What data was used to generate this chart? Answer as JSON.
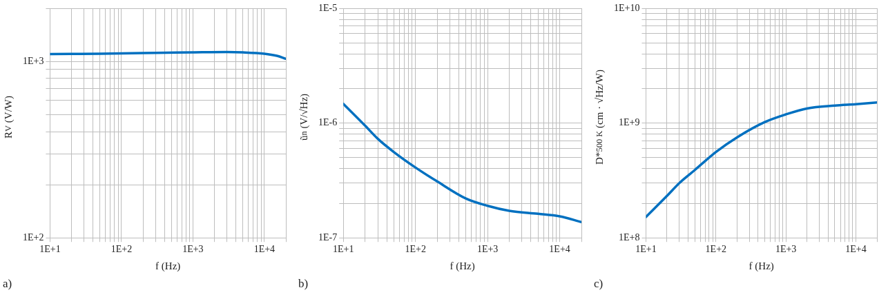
{
  "chart_data": [
    {
      "type": "line",
      "xlabel": "f (Hz)",
      "ylabel": "R$_{V}$ (V/W)",
      "annotations": [
        "a)"
      ],
      "log": "xy",
      "grid": true,
      "legend": false,
      "marker": "none",
      "line_style": "solid",
      "x": [
        10,
        20,
        50,
        100,
        300,
        1000,
        3000,
        5000,
        10000,
        15000,
        20000
      ],
      "series": [
        {
          "color": "#0070c0",
          "values": [
            1100,
            1102,
            1105,
            1110,
            1118,
            1125,
            1130,
            1125,
            1105,
            1075,
            1035
          ]
        }
      ],
      "xlim": [
        10,
        20000
      ],
      "ylim": [
        100,
        2000
      ],
      "xticks": [
        {
          "value": 10,
          "label": "1E+1"
        },
        {
          "value": 20,
          "label": null
        },
        {
          "value": 30,
          "label": null
        },
        {
          "value": 40,
          "label": null
        },
        {
          "value": 50,
          "label": null
        },
        {
          "value": 60,
          "label": null
        },
        {
          "value": 70,
          "label": null
        },
        {
          "value": 80,
          "label": null
        },
        {
          "value": 90,
          "label": null
        },
        {
          "value": 100,
          "label": "1E+2"
        },
        {
          "value": 200,
          "label": null
        },
        {
          "value": 300,
          "label": null
        },
        {
          "value": 400,
          "label": null
        },
        {
          "value": 500,
          "label": null
        },
        {
          "value": 600,
          "label": null
        },
        {
          "value": 700,
          "label": null
        },
        {
          "value": 800,
          "label": null
        },
        {
          "value": 900,
          "label": null
        },
        {
          "value": 1000,
          "label": "1E+3"
        },
        {
          "value": 2000,
          "label": null
        },
        {
          "value": 3000,
          "label": null
        },
        {
          "value": 4000,
          "label": null
        },
        {
          "value": 5000,
          "label": null
        },
        {
          "value": 6000,
          "label": null
        },
        {
          "value": 7000,
          "label": null
        },
        {
          "value": 8000,
          "label": null
        },
        {
          "value": 9000,
          "label": null
        },
        {
          "value": 10000,
          "label": "1E+4"
        },
        {
          "value": 20000,
          "label": null
        }
      ],
      "yticks": [
        {
          "value": 100,
          "label": "1E+2"
        },
        {
          "value": 200,
          "label": null
        },
        {
          "value": 300,
          "label": null
        },
        {
          "value": 400,
          "label": null
        },
        {
          "value": 500,
          "label": null
        },
        {
          "value": 600,
          "label": null
        },
        {
          "value": 700,
          "label": null
        },
        {
          "value": 800,
          "label": null
        },
        {
          "value": 900,
          "label": null
        },
        {
          "value": 1000,
          "label": "1E+3"
        },
        {
          "value": 2000,
          "label": null
        }
      ]
    },
    {
      "type": "line",
      "xlabel": "f (Hz)",
      "ylabel": "ũ$_{n}$ (V/√Hz)",
      "annotations": [
        "b)"
      ],
      "log": "xy",
      "grid": true,
      "legend": false,
      "marker": "none",
      "line_style": "solid",
      "x": [
        10,
        20,
        30,
        50,
        100,
        200,
        500,
        1000,
        2000,
        5000,
        10000,
        20000
      ],
      "series": [
        {
          "color": "#0070c0",
          "values": [
            1.47e-06,
            9.5e-07,
            7.3e-07,
            5.6e-07,
            4.1e-07,
            3.1e-07,
            2.2e-07,
            1.9e-07,
            1.72e-07,
            1.62e-07,
            1.54e-07,
            1.37e-07
          ]
        }
      ],
      "xlim": [
        10,
        20000
      ],
      "ylim": [
        1e-07,
        1e-05
      ],
      "xticks": [
        {
          "value": 10,
          "label": "1E+1"
        },
        {
          "value": 20,
          "label": null
        },
        {
          "value": 30,
          "label": null
        },
        {
          "value": 40,
          "label": null
        },
        {
          "value": 50,
          "label": null
        },
        {
          "value": 60,
          "label": null
        },
        {
          "value": 70,
          "label": null
        },
        {
          "value": 80,
          "label": null
        },
        {
          "value": 90,
          "label": null
        },
        {
          "value": 100,
          "label": "1E+2"
        },
        {
          "value": 200,
          "label": null
        },
        {
          "value": 300,
          "label": null
        },
        {
          "value": 400,
          "label": null
        },
        {
          "value": 500,
          "label": null
        },
        {
          "value": 600,
          "label": null
        },
        {
          "value": 700,
          "label": null
        },
        {
          "value": 800,
          "label": null
        },
        {
          "value": 900,
          "label": null
        },
        {
          "value": 1000,
          "label": "1E+3"
        },
        {
          "value": 2000,
          "label": null
        },
        {
          "value": 3000,
          "label": null
        },
        {
          "value": 4000,
          "label": null
        },
        {
          "value": 5000,
          "label": null
        },
        {
          "value": 6000,
          "label": null
        },
        {
          "value": 7000,
          "label": null
        },
        {
          "value": 8000,
          "label": null
        },
        {
          "value": 9000,
          "label": null
        },
        {
          "value": 10000,
          "label": "1E+4"
        },
        {
          "value": 20000,
          "label": null
        }
      ],
      "yticks": [
        {
          "value": 1e-07,
          "label": "1E-7"
        },
        {
          "value": 2e-07,
          "label": null
        },
        {
          "value": 3e-07,
          "label": null
        },
        {
          "value": 4e-07,
          "label": null
        },
        {
          "value": 5e-07,
          "label": null
        },
        {
          "value": 6e-07,
          "label": null
        },
        {
          "value": 7e-07,
          "label": null
        },
        {
          "value": 8e-07,
          "label": null
        },
        {
          "value": 9e-07,
          "label": null
        },
        {
          "value": 1e-06,
          "label": "1E-6"
        },
        {
          "value": 2e-06,
          "label": null
        },
        {
          "value": 3e-06,
          "label": null
        },
        {
          "value": 4e-06,
          "label": null
        },
        {
          "value": 5e-06,
          "label": null
        },
        {
          "value": 6e-06,
          "label": null
        },
        {
          "value": 7e-06,
          "label": null
        },
        {
          "value": 8e-06,
          "label": null
        },
        {
          "value": 9e-06,
          "label": null
        },
        {
          "value": 1e-05,
          "label": "1E-5"
        }
      ]
    },
    {
      "type": "line",
      "xlabel": "f (Hz)",
      "ylabel": "D*$_{500 K}$ (cm · √Hz/W)",
      "annotations": [
        "c)"
      ],
      "log": "xy",
      "grid": true,
      "legend": false,
      "marker": "none",
      "line_style": "solid",
      "x": [
        10,
        20,
        30,
        50,
        100,
        200,
        500,
        1000,
        2000,
        5000,
        10000,
        20000
      ],
      "series": [
        {
          "color": "#0070c0",
          "values": [
            152000000.0,
            232000000.0,
            300000000.0,
            390000000.0,
            560000000.0,
            750000000.0,
            1020000000.0,
            1190000000.0,
            1340000000.0,
            1420000000.0,
            1460000000.0,
            1510000000.0
          ]
        }
      ],
      "xlim": [
        10,
        20000
      ],
      "ylim": [
        100000000.0,
        10000000000.0
      ],
      "xticks": [
        {
          "value": 10,
          "label": "1E+1"
        },
        {
          "value": 20,
          "label": null
        },
        {
          "value": 30,
          "label": null
        },
        {
          "value": 40,
          "label": null
        },
        {
          "value": 50,
          "label": null
        },
        {
          "value": 60,
          "label": null
        },
        {
          "value": 70,
          "label": null
        },
        {
          "value": 80,
          "label": null
        },
        {
          "value": 90,
          "label": null
        },
        {
          "value": 100,
          "label": "1E+2"
        },
        {
          "value": 200,
          "label": null
        },
        {
          "value": 300,
          "label": null
        },
        {
          "value": 400,
          "label": null
        },
        {
          "value": 500,
          "label": null
        },
        {
          "value": 600,
          "label": null
        },
        {
          "value": 700,
          "label": null
        },
        {
          "value": 800,
          "label": null
        },
        {
          "value": 900,
          "label": null
        },
        {
          "value": 1000,
          "label": "1E+3"
        },
        {
          "value": 2000,
          "label": null
        },
        {
          "value": 3000,
          "label": null
        },
        {
          "value": 4000,
          "label": null
        },
        {
          "value": 5000,
          "label": null
        },
        {
          "value": 6000,
          "label": null
        },
        {
          "value": 7000,
          "label": null
        },
        {
          "value": 8000,
          "label": null
        },
        {
          "value": 9000,
          "label": null
        },
        {
          "value": 10000,
          "label": "1E+4"
        },
        {
          "value": 20000,
          "label": null
        }
      ],
      "yticks": [
        {
          "value": 100000000.0,
          "label": "1E+8"
        },
        {
          "value": 200000000.0,
          "label": null
        },
        {
          "value": 300000000.0,
          "label": null
        },
        {
          "value": 400000000.0,
          "label": null
        },
        {
          "value": 500000000.0,
          "label": null
        },
        {
          "value": 600000000.0,
          "label": null
        },
        {
          "value": 700000000.0,
          "label": null
        },
        {
          "value": 800000000.0,
          "label": null
        },
        {
          "value": 900000000.0,
          "label": null
        },
        {
          "value": 1000000000.0,
          "label": "1E+9"
        },
        {
          "value": 2000000000.0,
          "label": null
        },
        {
          "value": 3000000000.0,
          "label": null
        },
        {
          "value": 4000000000.0,
          "label": null
        },
        {
          "value": 5000000000.0,
          "label": null
        },
        {
          "value": 6000000000.0,
          "label": null
        },
        {
          "value": 7000000000.0,
          "label": null
        },
        {
          "value": 8000000000.0,
          "label": null
        },
        {
          "value": 9000000000.0,
          "label": null
        },
        {
          "value": 10000000000.0,
          "label": "1E+10"
        }
      ]
    }
  ]
}
